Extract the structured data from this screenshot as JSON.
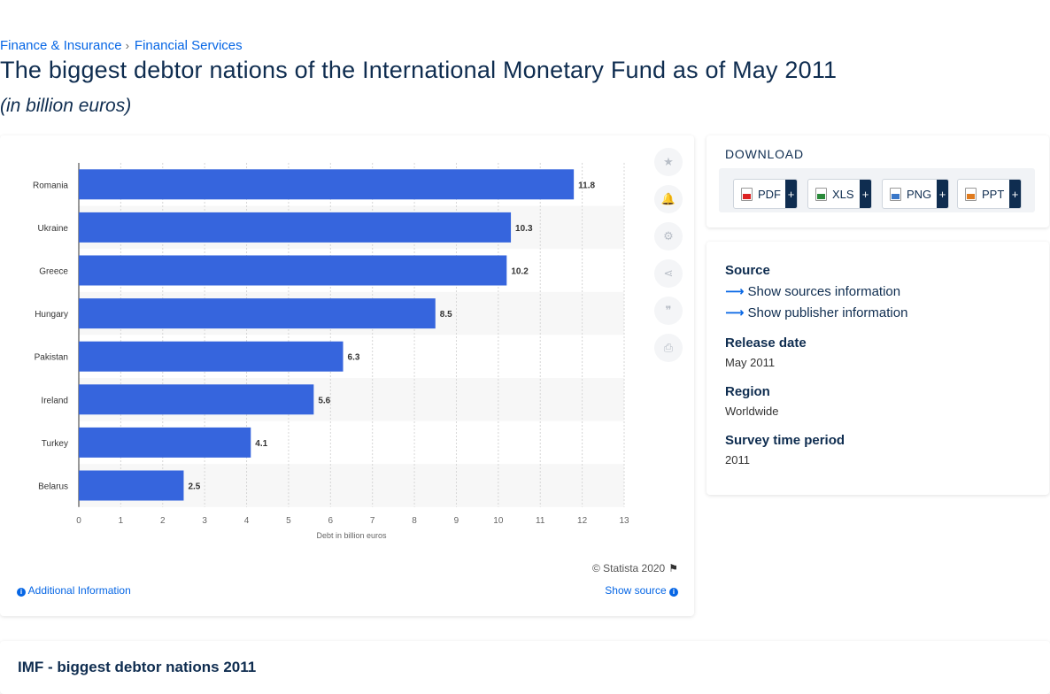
{
  "breadcrumb": {
    "items": [
      "Finance & Insurance",
      "Financial Services"
    ],
    "separator": "›"
  },
  "page_title": "The biggest debtor nations of the International Monetary Fund as of May 2011",
  "page_subtitle": "(in billion euros)",
  "chart_data": {
    "type": "bar",
    "orientation": "horizontal",
    "categories": [
      "Romania",
      "Ukraine",
      "Greece",
      "Hungary",
      "Pakistan",
      "Ireland",
      "Turkey",
      "Belarus"
    ],
    "values": [
      11.8,
      10.3,
      10.2,
      8.5,
      6.3,
      5.6,
      4.1,
      2.5
    ],
    "value_labels": [
      "11.8",
      "10.3",
      "10.2",
      "8.5",
      "6.3",
      "5.6",
      "4.1",
      "2.5"
    ],
    "xlabel": "Debt in billion euros",
    "ylabel": "",
    "xlim": [
      0,
      13
    ],
    "xticks": [
      "0",
      "1",
      "2",
      "3",
      "4",
      "5",
      "6",
      "7",
      "8",
      "9",
      "10",
      "11",
      "12",
      "13"
    ],
    "grid": "vertical dashed",
    "bar_color": "#3665dd",
    "stripe_color": "#f7f7f7"
  },
  "chart_footer": {
    "copyright": "© Statista 2020",
    "additional_info": "Additional Information",
    "show_source": "Show source"
  },
  "side_tools": [
    "star-icon",
    "bell-icon",
    "gear-icon",
    "share-icon",
    "quote-icon",
    "print-icon"
  ],
  "download": {
    "title": "DOWNLOAD",
    "buttons": [
      {
        "label": "PDF",
        "plus": "+"
      },
      {
        "label": "XLS",
        "plus": "+"
      },
      {
        "label": "PNG",
        "plus": "+"
      },
      {
        "label": "PPT",
        "plus": "+"
      }
    ]
  },
  "info": {
    "source_label": "Source",
    "show_sources": "Show sources information",
    "show_publisher": "Show publisher information",
    "release_label": "Release date",
    "release_value": "May 2011",
    "region_label": "Region",
    "region_value": "Worldwide",
    "survey_label": "Survey time period",
    "survey_value": "2011"
  },
  "bottom_title": "IMF - biggest debtor nations 2011",
  "colors": {
    "link": "#0666e5",
    "navy": "#0f2d50",
    "bar": "#3665dd"
  }
}
